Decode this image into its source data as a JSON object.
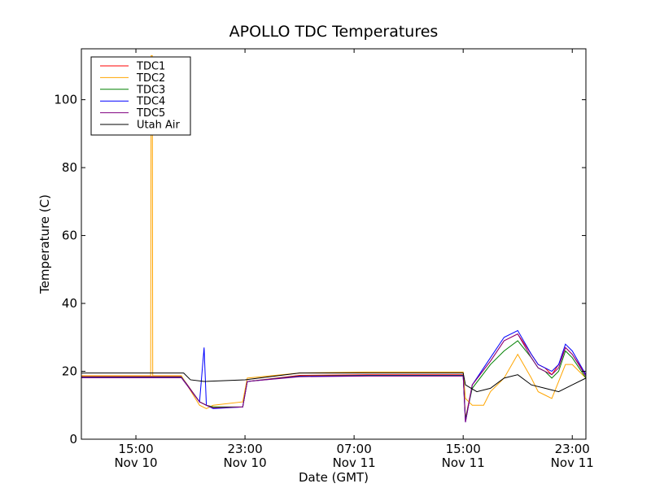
{
  "chart_data": {
    "type": "line",
    "title": "APOLLO TDC Temperatures",
    "xlabel": "Date (GMT)",
    "ylabel": "Temperature (C)",
    "x_range": [
      "2010-11-10T11:00",
      "2010-11-12T00:00"
    ],
    "ylim": [
      0,
      115
    ],
    "y_ticks": [
      0,
      20,
      40,
      60,
      80,
      100
    ],
    "x_ticks": [
      {
        "t": "2010-11-10T15:00",
        "time": "15:00",
        "date": "Nov 10"
      },
      {
        "t": "2010-11-10T23:00",
        "time": "23:00",
        "date": "Nov 10"
      },
      {
        "t": "2010-11-11T07:00",
        "time": "07:00",
        "date": "Nov 11"
      },
      {
        "t": "2010-11-11T15:00",
        "time": "15:00",
        "date": "Nov 11"
      },
      {
        "t": "2010-11-11T23:00",
        "time": "23:00",
        "date": "Nov 11"
      }
    ],
    "legend_position": "top-left",
    "grid": false,
    "series": [
      {
        "name": "TDC1",
        "color": "#ff0000",
        "points": [
          [
            "2010-11-10T11:00",
            18.5
          ],
          [
            "2010-11-10T18:20",
            18.5
          ],
          [
            "2010-11-10T19:40",
            11
          ],
          [
            "2010-11-10T20:10",
            10
          ],
          [
            "2010-11-10T20:40",
            9.5
          ],
          [
            "2010-11-10T22:50",
            9.5
          ],
          [
            "2010-11-10T23:10",
            17
          ],
          [
            "2010-11-11T03:00",
            18.8
          ],
          [
            "2010-11-11T08:00",
            19
          ],
          [
            "2010-11-11T13:00",
            19
          ],
          [
            "2010-11-11T15:00",
            19
          ],
          [
            "2010-11-11T15:10",
            6
          ],
          [
            "2010-11-11T15:40",
            16
          ],
          [
            "2010-11-11T17:00",
            23
          ],
          [
            "2010-11-11T18:00",
            29
          ],
          [
            "2010-11-11T19:00",
            31
          ],
          [
            "2010-11-11T20:00",
            25
          ],
          [
            "2010-11-11T20:30",
            22
          ],
          [
            "2010-11-11T21:00",
            21
          ],
          [
            "2010-11-11T21:30",
            19
          ],
          [
            "2010-11-11T22:00",
            22
          ],
          [
            "2010-11-11T22:30",
            27
          ],
          [
            "2010-11-11T23:00",
            25
          ],
          [
            "2010-11-12T00:00",
            19
          ]
        ]
      },
      {
        "name": "TDC2",
        "color": "#ffa500",
        "points": [
          [
            "2010-11-10T11:00",
            18.7
          ],
          [
            "2010-11-10T16:05",
            18.7
          ],
          [
            "2010-11-10T16:07",
            113
          ],
          [
            "2010-11-10T16:12",
            113
          ],
          [
            "2010-11-10T16:14",
            18.7
          ],
          [
            "2010-11-10T18:20",
            18.7
          ],
          [
            "2010-11-10T19:40",
            10
          ],
          [
            "2010-11-10T20:10",
            9
          ],
          [
            "2010-11-10T20:40",
            10
          ],
          [
            "2010-11-10T22:50",
            11
          ],
          [
            "2010-11-10T23:10",
            18
          ],
          [
            "2010-11-11T03:00",
            19.5
          ],
          [
            "2010-11-11T08:00",
            19.8
          ],
          [
            "2010-11-11T13:00",
            19.8
          ],
          [
            "2010-11-11T15:00",
            19.8
          ],
          [
            "2010-11-11T15:10",
            12
          ],
          [
            "2010-11-11T15:40",
            10
          ],
          [
            "2010-11-11T16:30",
            10
          ],
          [
            "2010-11-11T17:00",
            14
          ],
          [
            "2010-11-11T18:00",
            18
          ],
          [
            "2010-11-11T19:00",
            25
          ],
          [
            "2010-11-11T20:00",
            18
          ],
          [
            "2010-11-11T20:30",
            14
          ],
          [
            "2010-11-11T21:00",
            13
          ],
          [
            "2010-11-11T21:30",
            12
          ],
          [
            "2010-11-11T22:00",
            17
          ],
          [
            "2010-11-11T22:30",
            22
          ],
          [
            "2010-11-11T23:00",
            22
          ],
          [
            "2010-11-12T00:00",
            18
          ]
        ]
      },
      {
        "name": "TDC3",
        "color": "#008000",
        "points": [
          [
            "2010-11-10T11:00",
            18.3
          ],
          [
            "2010-11-10T18:20",
            18.3
          ],
          [
            "2010-11-10T19:40",
            11
          ],
          [
            "2010-11-10T20:10",
            10
          ],
          [
            "2010-11-10T20:40",
            9.5
          ],
          [
            "2010-11-10T22:50",
            9.5
          ],
          [
            "2010-11-10T23:10",
            17
          ],
          [
            "2010-11-11T03:00",
            18.6
          ],
          [
            "2010-11-11T08:00",
            18.8
          ],
          [
            "2010-11-11T13:00",
            18.8
          ],
          [
            "2010-11-11T15:00",
            18.8
          ],
          [
            "2010-11-11T15:10",
            6
          ],
          [
            "2010-11-11T15:40",
            15
          ],
          [
            "2010-11-11T17:00",
            22
          ],
          [
            "2010-11-11T18:00",
            26
          ],
          [
            "2010-11-11T19:00",
            29
          ],
          [
            "2010-11-11T20:00",
            24
          ],
          [
            "2010-11-11T20:30",
            21
          ],
          [
            "2010-11-11T21:00",
            20
          ],
          [
            "2010-11-11T21:30",
            18
          ],
          [
            "2010-11-11T22:00",
            20
          ],
          [
            "2010-11-11T22:30",
            26
          ],
          [
            "2010-11-11T23:00",
            24
          ],
          [
            "2010-11-12T00:00",
            18
          ]
        ]
      },
      {
        "name": "TDC4",
        "color": "#0000ff",
        "points": [
          [
            "2010-11-10T11:00",
            18.2
          ],
          [
            "2010-11-10T18:20",
            18.2
          ],
          [
            "2010-11-10T19:40",
            11
          ],
          [
            "2010-11-10T20:00",
            27
          ],
          [
            "2010-11-10T20:10",
            10
          ],
          [
            "2010-11-10T20:40",
            9
          ],
          [
            "2010-11-10T22:50",
            9.5
          ],
          [
            "2010-11-10T23:10",
            17
          ],
          [
            "2010-11-11T03:00",
            18.5
          ],
          [
            "2010-11-11T08:00",
            18.7
          ],
          [
            "2010-11-11T13:00",
            18.7
          ],
          [
            "2010-11-11T15:00",
            18.7
          ],
          [
            "2010-11-11T15:10",
            5
          ],
          [
            "2010-11-11T15:40",
            16
          ],
          [
            "2010-11-11T17:00",
            24
          ],
          [
            "2010-11-11T18:00",
            30
          ],
          [
            "2010-11-11T19:00",
            32
          ],
          [
            "2010-11-11T20:00",
            25
          ],
          [
            "2010-11-11T20:30",
            22
          ],
          [
            "2010-11-11T21:00",
            21
          ],
          [
            "2010-11-11T21:30",
            20
          ],
          [
            "2010-11-11T22:00",
            22
          ],
          [
            "2010-11-11T22:30",
            28
          ],
          [
            "2010-11-11T23:00",
            26
          ],
          [
            "2010-11-12T00:00",
            19
          ]
        ]
      },
      {
        "name": "TDC5",
        "color": "#800080",
        "points": [
          [
            "2010-11-10T11:00",
            18.1
          ],
          [
            "2010-11-10T18:20",
            18.1
          ],
          [
            "2010-11-10T19:40",
            11
          ],
          [
            "2010-11-10T20:10",
            10
          ],
          [
            "2010-11-10T20:40",
            9.2
          ],
          [
            "2010-11-10T22:50",
            9.5
          ],
          [
            "2010-11-10T23:10",
            17
          ],
          [
            "2010-11-11T03:00",
            18.4
          ],
          [
            "2010-11-11T08:00",
            18.6
          ],
          [
            "2010-11-11T13:00",
            18.6
          ],
          [
            "2010-11-11T15:00",
            18.6
          ],
          [
            "2010-11-11T15:10",
            5
          ],
          [
            "2010-11-11T15:40",
            16
          ],
          [
            "2010-11-11T17:00",
            23
          ],
          [
            "2010-11-11T18:00",
            29
          ],
          [
            "2010-11-11T19:00",
            31
          ],
          [
            "2010-11-11T20:00",
            24
          ],
          [
            "2010-11-11T20:30",
            21
          ],
          [
            "2010-11-11T21:00",
            20
          ],
          [
            "2010-11-11T21:30",
            19
          ],
          [
            "2010-11-11T22:00",
            21
          ],
          [
            "2010-11-11T22:30",
            27
          ],
          [
            "2010-11-11T23:00",
            25
          ],
          [
            "2010-11-12T00:00",
            18.5
          ]
        ]
      },
      {
        "name": "Utah Air",
        "color": "#000000",
        "points": [
          [
            "2010-11-10T11:00",
            19.5
          ],
          [
            "2010-11-10T18:30",
            19.5
          ],
          [
            "2010-11-10T19:00",
            17.5
          ],
          [
            "2010-11-10T20:00",
            17
          ],
          [
            "2010-11-10T23:00",
            17.5
          ],
          [
            "2010-11-11T03:00",
            19.5
          ],
          [
            "2010-11-11T08:00",
            19.5
          ],
          [
            "2010-11-11T13:00",
            19.5
          ],
          [
            "2010-11-11T15:00",
            19.5
          ],
          [
            "2010-11-11T15:10",
            16
          ],
          [
            "2010-11-11T16:00",
            14
          ],
          [
            "2010-11-11T17:00",
            15
          ],
          [
            "2010-11-11T18:00",
            18
          ],
          [
            "2010-11-11T19:00",
            19
          ],
          [
            "2010-11-11T20:00",
            16
          ],
          [
            "2010-11-11T21:00",
            15
          ],
          [
            "2010-11-11T22:00",
            14
          ],
          [
            "2010-11-11T23:00",
            16
          ],
          [
            "2010-11-12T00:00",
            18
          ]
        ]
      }
    ]
  }
}
